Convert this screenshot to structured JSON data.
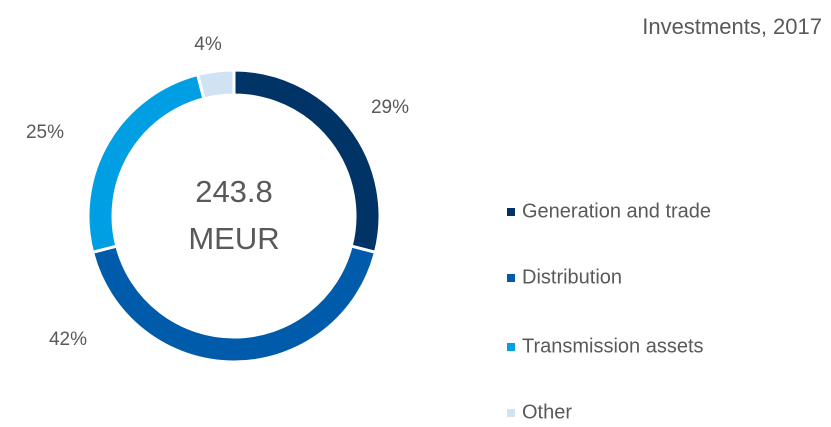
{
  "chart_data": {
    "type": "donut",
    "title": "Investments, 2017",
    "center_value": 243.8,
    "center_unit": "MEUR",
    "categories": [
      "Generation and trade",
      "Distribution",
      "Transmission assets",
      "Other"
    ],
    "values": [
      29,
      42,
      25,
      4
    ],
    "value_labels": [
      "29%",
      "42%",
      "25%",
      "4%"
    ],
    "colors": [
      "#003366",
      "#005baa",
      "#009fe3",
      "#cfe3f5"
    ],
    "legend": "right"
  }
}
